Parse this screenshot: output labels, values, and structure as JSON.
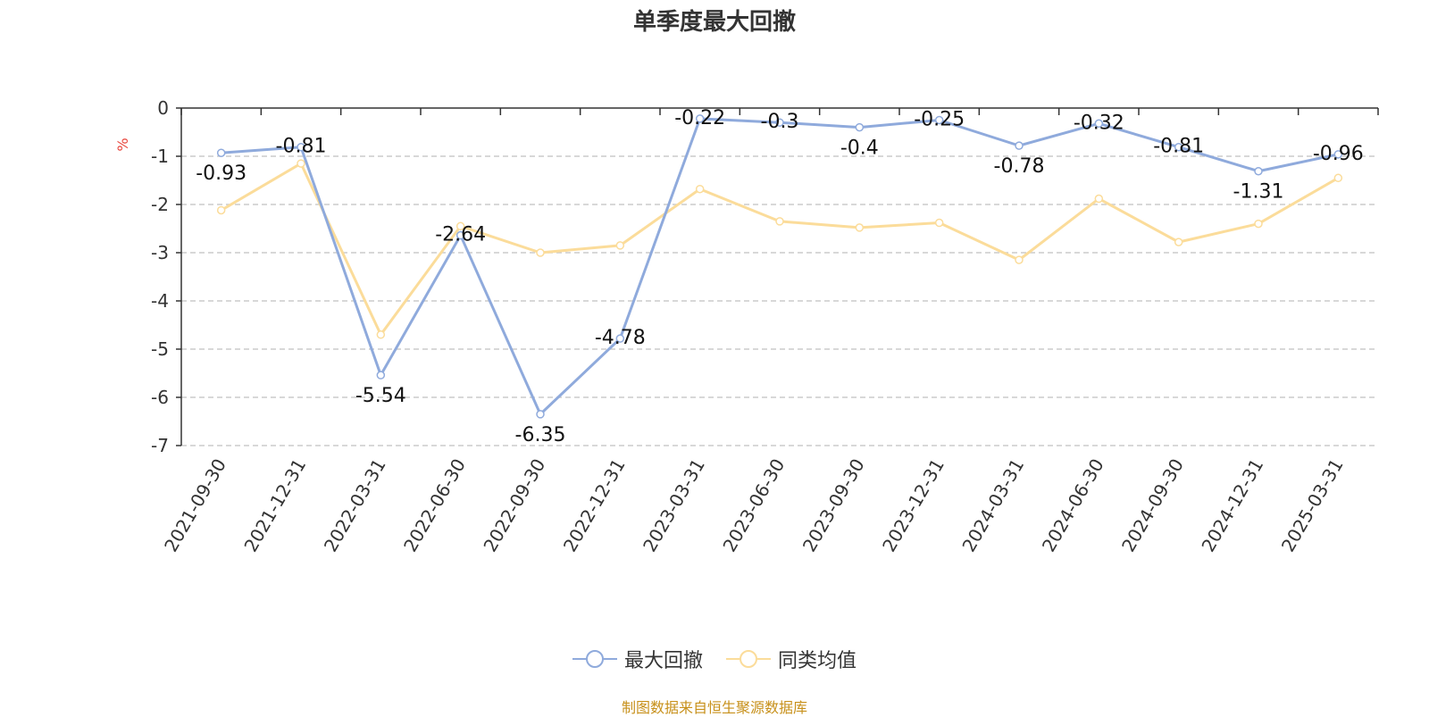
{
  "chart_data": {
    "type": "line",
    "title": "单季度最大回撤",
    "ylabel": "%",
    "categories": [
      "2021-09-30",
      "2021-12-31",
      "2022-03-31",
      "2022-06-30",
      "2022-09-30",
      "2022-12-31",
      "2023-03-31",
      "2023-06-30",
      "2023-09-30",
      "2023-12-31",
      "2024-03-31",
      "2024-06-30",
      "2024-09-30",
      "2024-12-31",
      "2025-03-31"
    ],
    "ylim": [
      -7,
      0
    ],
    "yticks": [
      0,
      -1,
      -2,
      -3,
      -4,
      -5,
      -6,
      -7
    ],
    "grid": true,
    "legend_position": "bottom",
    "series": [
      {
        "name": "最大回撤",
        "color": "#8faadc",
        "values": [
          -0.93,
          -0.81,
          -5.54,
          -2.64,
          -6.35,
          -4.78,
          -0.22,
          -0.3,
          -0.4,
          -0.25,
          -0.78,
          -0.32,
          -0.81,
          -1.31,
          -0.96
        ],
        "show_labels": true
      },
      {
        "name": "同类均值",
        "color": "#fbdc9a",
        "values": [
          -2.12,
          -1.15,
          -4.7,
          -2.45,
          -3.0,
          -2.85,
          -1.68,
          -2.35,
          -2.48,
          -2.38,
          -3.15,
          -1.88,
          -2.78,
          -2.4,
          -1.45
        ],
        "show_labels": false
      }
    ]
  },
  "footer": {
    "source": "制图数据来自恒生聚源数据库"
  },
  "colors": {
    "title": "#333333",
    "axis": "#333333",
    "grid": "#cccccc",
    "unit_label": "#e8453c",
    "source_text": "#c7901a"
  }
}
